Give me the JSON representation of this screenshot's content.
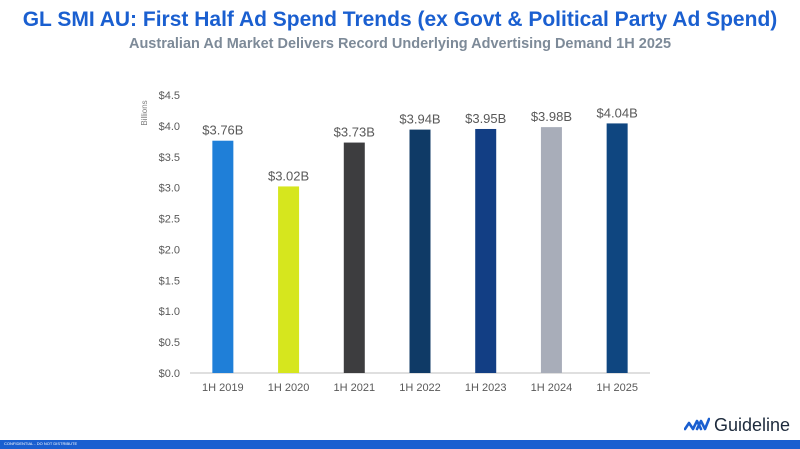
{
  "header": {
    "title": "GL SMI AU: First Half Ad Spend Trends (ex Govt & Political Party Ad Spend)",
    "subtitle": "Australian Ad Market Delivers Record Underlying Advertising Demand 1H 2025"
  },
  "chart_data": {
    "type": "bar",
    "title": "",
    "xlabel": "",
    "ylabel": "Billions",
    "categories": [
      "1H 2019",
      "1H 2020",
      "1H 2021",
      "1H 2022",
      "1H 2023",
      "1H 2024",
      "1H 2025"
    ],
    "values": [
      3.76,
      3.02,
      3.73,
      3.94,
      3.95,
      3.98,
      4.04
    ],
    "data_labels": [
      "$3.76B",
      "$3.02B",
      "$3.73B",
      "$3.94B",
      "$3.95B",
      "$3.98B",
      "$4.04B"
    ],
    "bar_colors": [
      "#1f7fd8",
      "#d6e61e",
      "#3d3d3f",
      "#0f3a66",
      "#123e84",
      "#a8adb9",
      "#0f4680"
    ],
    "ylim": [
      0,
      4.5
    ],
    "yticks": [
      0,
      0.5,
      1.0,
      1.5,
      2.0,
      2.5,
      3.0,
      3.5,
      4.0,
      4.5
    ],
    "ytick_labels": [
      "$0.0",
      "$0.5",
      "$1.0",
      "$1.5",
      "$2.0",
      "$2.5",
      "$3.0",
      "$3.5",
      "$4.0",
      "$4.5"
    ],
    "grid": false,
    "legend": "none"
  },
  "brand": {
    "logo_text": "Guideline",
    "logo_color": "#1a5fd0",
    "icon": "guideline-wave-icon"
  },
  "footer": {
    "text": "CONFIDENTIAL - DO NOT DISTRIBUTE",
    "bar_color": "#1a5fd0"
  }
}
